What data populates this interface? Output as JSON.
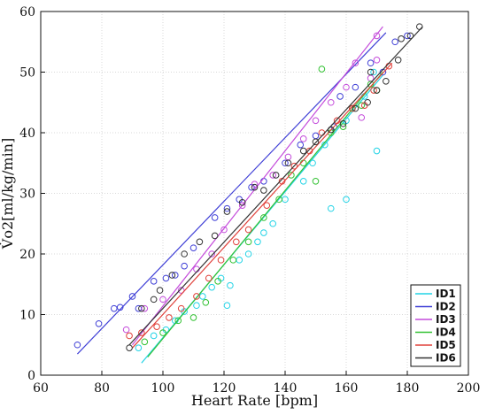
{
  "chart_data": {
    "type": "scatter",
    "xlabel": "Heart Rate [bpm]",
    "ylabel": "V̇o2[ml/kg/min]",
    "xlim": [
      60,
      200
    ],
    "ylim": [
      0,
      60
    ],
    "x_ticks": [
      60,
      80,
      100,
      120,
      140,
      160,
      180,
      200
    ],
    "y_ticks": [
      0,
      10,
      20,
      30,
      40,
      50,
      60
    ],
    "grid": true,
    "legend_position": "bottom-right",
    "series": [
      {
        "name": "ID1",
        "color": "#22d3e6",
        "points": [
          [
            92,
            4.5
          ],
          [
            97,
            6.5
          ],
          [
            101,
            7.5
          ],
          [
            104,
            9
          ],
          [
            107,
            10.5
          ],
          [
            111,
            11.5
          ],
          [
            113,
            13
          ],
          [
            116,
            14.5
          ],
          [
            119,
            16
          ],
          [
            121,
            11.5
          ],
          [
            122,
            14.8
          ],
          [
            125,
            19
          ],
          [
            128,
            20
          ],
          [
            131,
            22
          ],
          [
            133,
            23.5
          ],
          [
            136,
            25
          ],
          [
            140,
            29
          ],
          [
            146,
            32
          ],
          [
            149,
            35
          ],
          [
            153,
            38
          ],
          [
            155,
            27.5
          ],
          [
            160,
            29
          ],
          [
            160,
            42
          ],
          [
            162,
            44
          ],
          [
            166,
            46
          ],
          [
            169,
            50
          ],
          [
            170,
            37
          ]
        ],
        "fit": [
          [
            93,
            2
          ],
          [
            172,
            49.5
          ]
        ]
      },
      {
        "name": "ID2",
        "color": "#3f3fd6",
        "points": [
          [
            72,
            5
          ],
          [
            79,
            8.5
          ],
          [
            84,
            11
          ],
          [
            86,
            11.2
          ],
          [
            90,
            13
          ],
          [
            92,
            11
          ],
          [
            97,
            15.5
          ],
          [
            101,
            16
          ],
          [
            104,
            16.5
          ],
          [
            107,
            18
          ],
          [
            110,
            21
          ],
          [
            117,
            26
          ],
          [
            121,
            27.5
          ],
          [
            125,
            29
          ],
          [
            129,
            31
          ],
          [
            133,
            32
          ],
          [
            140,
            35
          ],
          [
            145,
            38
          ],
          [
            150,
            39.5
          ],
          [
            156,
            41
          ],
          [
            158,
            46
          ],
          [
            163,
            47.5
          ],
          [
            168,
            51.5
          ],
          [
            172,
            50
          ],
          [
            176,
            55
          ],
          [
            180,
            56
          ]
        ],
        "fit": [
          [
            72,
            3.5
          ],
          [
            173,
            56.5
          ]
        ]
      },
      {
        "name": "ID3",
        "color": "#c44bdb",
        "points": [
          [
            88,
            7.5
          ],
          [
            94,
            11
          ],
          [
            100,
            12.5
          ],
          [
            106,
            14
          ],
          [
            111,
            17.5
          ],
          [
            116,
            20
          ],
          [
            120,
            24
          ],
          [
            126,
            28
          ],
          [
            130,
            31.5
          ],
          [
            136,
            33
          ],
          [
            141,
            36
          ],
          [
            146,
            39
          ],
          [
            150,
            42
          ],
          [
            155,
            45
          ],
          [
            160,
            47.5
          ],
          [
            163,
            51.5
          ],
          [
            165,
            42.5
          ],
          [
            168,
            49
          ],
          [
            170,
            52
          ],
          [
            170,
            56
          ]
        ],
        "fit": [
          [
            90,
            5
          ],
          [
            172,
            57.5
          ]
        ]
      },
      {
        "name": "ID4",
        "color": "#33c233",
        "points": [
          [
            94,
            5.5
          ],
          [
            100,
            7
          ],
          [
            105,
            9
          ],
          [
            110,
            9.5
          ],
          [
            114,
            12
          ],
          [
            118,
            15.5
          ],
          [
            123,
            19
          ],
          [
            128,
            22
          ],
          [
            133,
            26
          ],
          [
            138,
            29
          ],
          [
            142,
            33
          ],
          [
            146,
            35
          ],
          [
            150,
            32
          ],
          [
            152,
            50.5
          ],
          [
            155,
            40
          ],
          [
            159,
            41
          ],
          [
            162,
            44
          ],
          [
            165,
            44.5
          ],
          [
            168,
            48
          ],
          [
            170,
            47
          ]
        ],
        "fit": [
          [
            95,
            3
          ],
          [
            172,
            50
          ]
        ]
      },
      {
        "name": "ID5",
        "color": "#e0403a",
        "points": [
          [
            89,
            6.5
          ],
          [
            93,
            7
          ],
          [
            98,
            8
          ],
          [
            102,
            9.5
          ],
          [
            106,
            11
          ],
          [
            111,
            13
          ],
          [
            115,
            16
          ],
          [
            119,
            19
          ],
          [
            124,
            22
          ],
          [
            128,
            24
          ],
          [
            134,
            28
          ],
          [
            139,
            32
          ],
          [
            143,
            34.5
          ],
          [
            148,
            37
          ],
          [
            152,
            40
          ],
          [
            157,
            42
          ],
          [
            162,
            44
          ],
          [
            166,
            44.5
          ],
          [
            169,
            47
          ],
          [
            174,
            51
          ]
        ],
        "fit": [
          [
            90,
            4.5
          ],
          [
            175,
            51.5
          ]
        ]
      },
      {
        "name": "ID6",
        "color": "#333333",
        "points": [
          [
            89,
            4.5
          ],
          [
            93,
            11
          ],
          [
            97,
            12.5
          ],
          [
            99,
            14
          ],
          [
            103,
            16.5
          ],
          [
            107,
            20
          ],
          [
            112,
            22
          ],
          [
            117,
            23
          ],
          [
            121,
            27
          ],
          [
            126,
            28.5
          ],
          [
            130,
            31
          ],
          [
            133,
            30.5
          ],
          [
            137,
            33
          ],
          [
            141,
            35
          ],
          [
            146,
            37
          ],
          [
            150,
            38.5
          ],
          [
            155,
            40.5
          ],
          [
            159,
            41.5
          ],
          [
            163,
            44
          ],
          [
            167,
            45
          ],
          [
            168,
            50
          ],
          [
            170,
            47
          ],
          [
            173,
            48.5
          ],
          [
            177,
            52
          ],
          [
            178,
            55.5
          ],
          [
            181,
            56
          ],
          [
            184,
            57.5
          ]
        ],
        "fit": [
          [
            89,
            5
          ],
          [
            185,
            57.5
          ]
        ]
      }
    ]
  }
}
